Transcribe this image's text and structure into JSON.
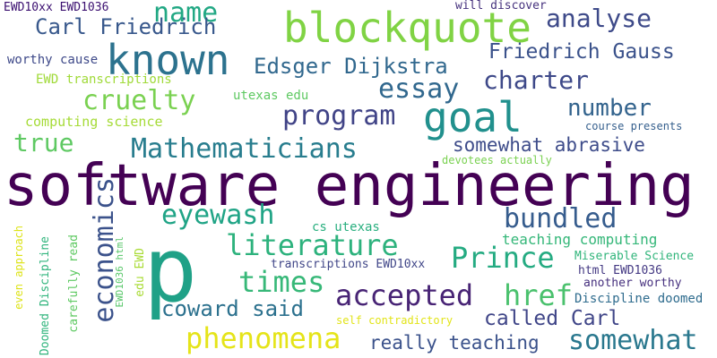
{
  "word_cloud": {
    "background": "#ffffff",
    "palette": [
      "#440154",
      "#46327e",
      "#365c8d",
      "#277f8e",
      "#1fa187",
      "#4ac16d",
      "#a0da39",
      "#fde725"
    ],
    "words": [
      {
        "id": "software-engineering",
        "text": "software engineering",
        "color": "#440154"
      },
      {
        "id": "p",
        "text": "p",
        "color": "#1fa187"
      },
      {
        "id": "blockquote",
        "text": "blockquote",
        "color": "#80d344"
      },
      {
        "id": "known",
        "text": "known",
        "color": "#2c728e"
      },
      {
        "id": "goal",
        "text": "goal",
        "color": "#21908d"
      },
      {
        "id": "mathematicians",
        "text": "Mathematicians",
        "color": "#287d8e"
      },
      {
        "id": "economics",
        "text": "economics",
        "color": "#3b528b"
      },
      {
        "id": "literature",
        "text": "literature",
        "color": "#2db27d"
      },
      {
        "id": "somewhat-bottom",
        "text": "somewhat",
        "color": "#2a788e"
      },
      {
        "id": "accepted",
        "text": "accepted",
        "color": "#482475"
      },
      {
        "id": "phenomena",
        "text": "phenomena",
        "color": "#e5e419"
      },
      {
        "id": "prince",
        "text": "Prince",
        "color": "#25ab82"
      },
      {
        "id": "href",
        "text": "href",
        "color": "#4ac16d"
      },
      {
        "id": "times",
        "text": "times",
        "color": "#37b878"
      },
      {
        "id": "cruelty",
        "text": "cruelty",
        "color": "#7ad151"
      },
      {
        "id": "program",
        "text": "program",
        "color": "#414487"
      },
      {
        "id": "essay",
        "text": "essay",
        "color": "#31688e"
      },
      {
        "id": "eyewash",
        "text": "eyewash",
        "color": "#20a486"
      },
      {
        "id": "bundled",
        "text": "bundled",
        "color": "#365c8d"
      },
      {
        "id": "name",
        "text": "name",
        "color": "#22a884"
      },
      {
        "id": "charter",
        "text": "charter",
        "color": "#3e4989"
      },
      {
        "id": "number",
        "text": "number",
        "color": "#33638d"
      },
      {
        "id": "analyse",
        "text": "analyse",
        "color": "#3e4a89"
      },
      {
        "id": "true",
        "text": "true",
        "color": "#5ec962"
      },
      {
        "id": "edsger-dijkstra",
        "text": "Edsger Dijkstra",
        "color": "#31688e"
      },
      {
        "id": "carl-friedrich",
        "text": "Carl Friedrich",
        "color": "#38588c"
      },
      {
        "id": "friedrich-gauss",
        "text": "Friedrich Gauss",
        "color": "#3b528b"
      },
      {
        "id": "coward-said",
        "text": "coward said",
        "color": "#2c718e"
      },
      {
        "id": "called-carl",
        "text": "called Carl",
        "color": "#404688"
      },
      {
        "id": "somewhat-abrasive",
        "text": "somewhat abrasive",
        "color": "#3e4c8a"
      },
      {
        "id": "teaching-computing",
        "text": "teaching computing",
        "color": "#35b779"
      },
      {
        "id": "really-teaching",
        "text": "really teaching",
        "color": "#3b528b"
      },
      {
        "id": "utexas-edu",
        "text": "utexas edu",
        "color": "#5ec962"
      },
      {
        "id": "computing-science",
        "text": "computing science",
        "color": "#a5db36"
      },
      {
        "id": "ewd-transcriptions",
        "text": "EWD transcriptions",
        "color": "#a0da39"
      },
      {
        "id": "worthy-cause",
        "text": "worthy cause",
        "color": "#3e4989"
      },
      {
        "id": "ewd10xx-ewd1036",
        "text": "EWD10xx EWD1036",
        "color": "#3b0f70"
      },
      {
        "id": "will-discover",
        "text": "will discover",
        "color": "#46327e"
      },
      {
        "id": "devotees-actually",
        "text": "devotees actually",
        "color": "#7ad151"
      },
      {
        "id": "cs-utexas",
        "text": "cs utexas",
        "color": "#29af7f"
      },
      {
        "id": "transcriptions-ewd10xx",
        "text": "transcriptions EWD10xx",
        "color": "#404688"
      },
      {
        "id": "miserable-science",
        "text": "Miserable Science",
        "color": "#31b57b"
      },
      {
        "id": "html-ewd1036",
        "text": "html EWD1036",
        "color": "#443983"
      },
      {
        "id": "another-worthy",
        "text": "another worthy",
        "color": "#46307e"
      },
      {
        "id": "discipline-doomed",
        "text": "Discipline doomed",
        "color": "#2f6c8e"
      },
      {
        "id": "self-contradictory",
        "text": "self contradictory",
        "color": "#e2e418"
      },
      {
        "id": "course-presents",
        "text": "course presents",
        "color": "#355f8d"
      },
      {
        "id": "even-approach",
        "text": "even approach",
        "color": "#dde318"
      },
      {
        "id": "doomed-discipline",
        "text": "Doomed Discipline",
        "color": "#2fb47c"
      },
      {
        "id": "carefully-read",
        "text": "carefully read",
        "color": "#5ec962"
      },
      {
        "id": "ewd1036-html",
        "text": "EWD1036 html",
        "color": "#56c667"
      },
      {
        "id": "edu-ewd",
        "text": "edu EWD",
        "color": "#a8db34"
      }
    ]
  }
}
